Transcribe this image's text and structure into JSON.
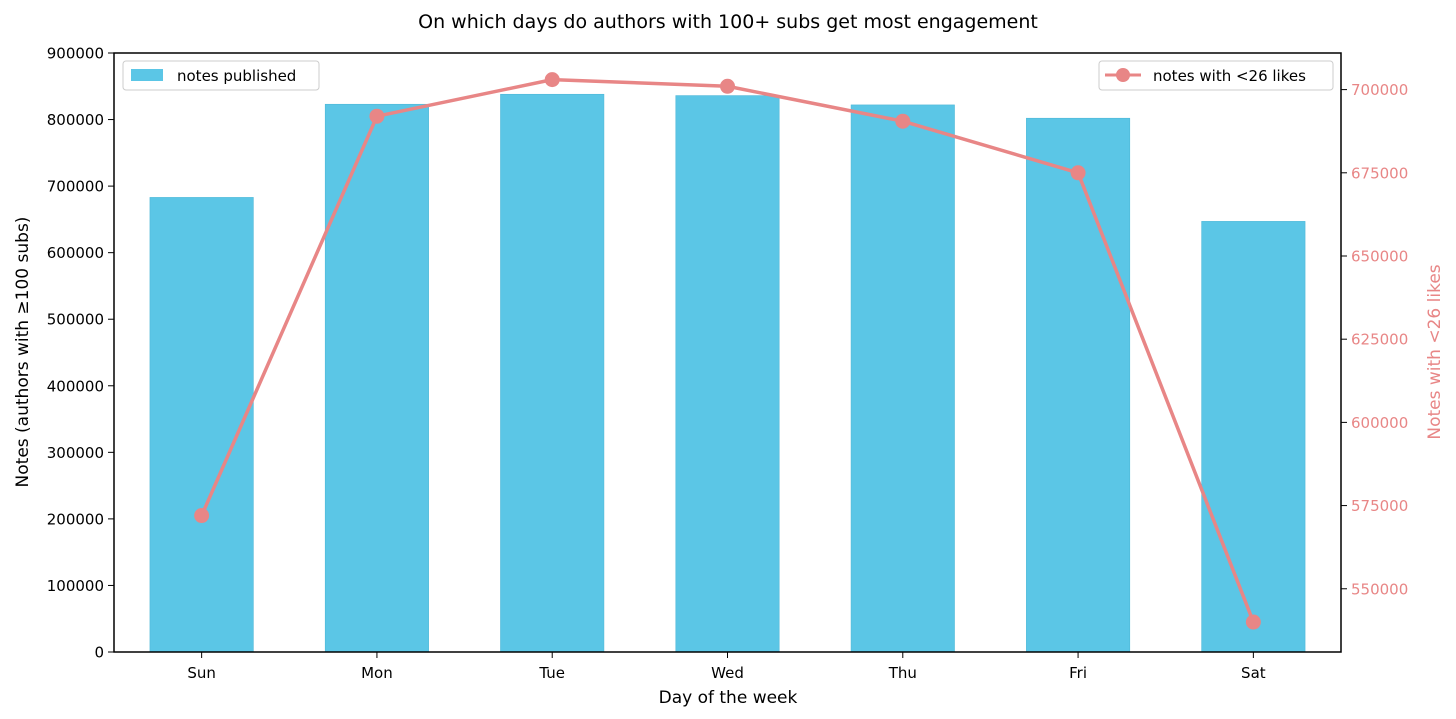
{
  "chart_data": {
    "type": "bar",
    "title": "On which days do authors with 100+ subs get most engagement",
    "xlabel": "Day of the week",
    "ylabel": "Notes (authors with ≥100 subs)",
    "y2label": "Notes with <26 likes",
    "categories": [
      "Sun",
      "Mon",
      "Tue",
      "Wed",
      "Thu",
      "Fri",
      "Sat"
    ],
    "ylim": [
      0,
      900000
    ],
    "y2lim": [
      531000,
      711000
    ],
    "yticks": [
      "0",
      "100000",
      "200000",
      "300000",
      "400000",
      "500000",
      "600000",
      "700000",
      "800000",
      "900000"
    ],
    "y2ticks": [
      "550000",
      "575000",
      "600000",
      "625000",
      "650000",
      "675000",
      "700000"
    ],
    "grid": false,
    "series": [
      {
        "name": "notes published",
        "type": "bar",
        "axis": "left",
        "color": "#5bc6e6",
        "values": [
          683000,
          823000,
          838000,
          836000,
          822000,
          802000,
          647000
        ]
      },
      {
        "name": "notes with <26 likes",
        "type": "line",
        "axis": "right",
        "color": "#e88686",
        "marker": "circle",
        "values": [
          572000,
          692000,
          703000,
          701000,
          690500,
          675000,
          540000
        ]
      }
    ],
    "legends": [
      {
        "position": "top-left",
        "series": "notes published"
      },
      {
        "position": "top-right",
        "series": "notes with <26 likes"
      }
    ]
  }
}
